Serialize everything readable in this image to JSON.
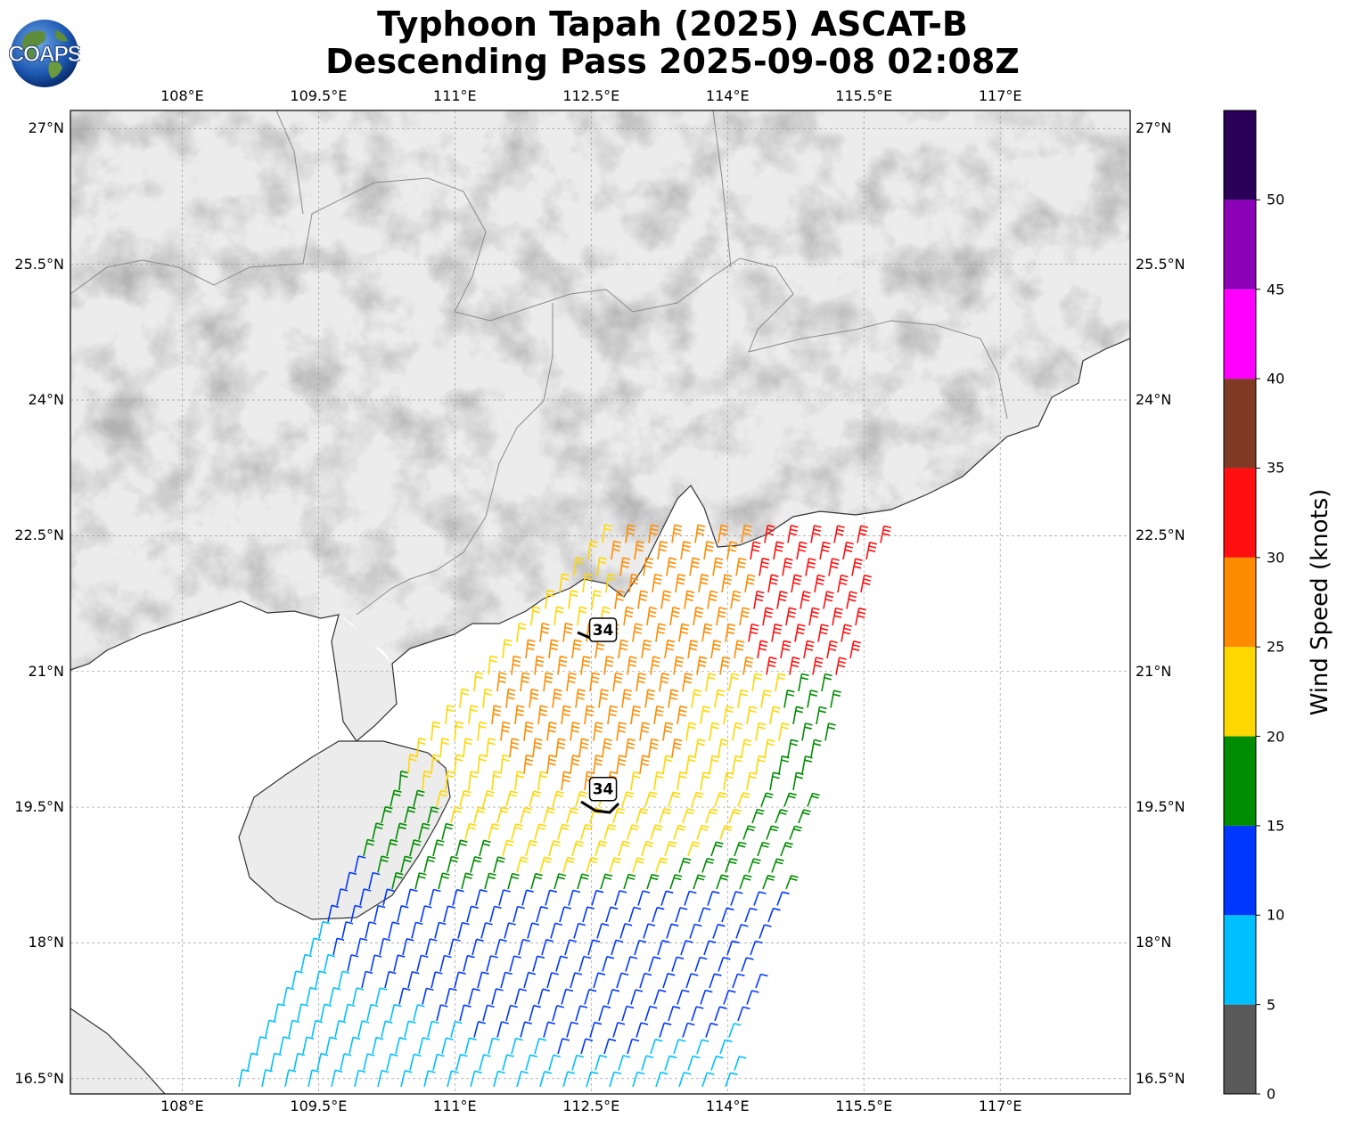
{
  "title": {
    "line1": "Typhoon Tapah (2025) ASCAT-B",
    "line2": "Descending Pass 2025-09-08 02:08Z"
  },
  "logo": {
    "text": "COAPS",
    "icon": "globe-logo-icon"
  },
  "map": {
    "lon_range": [
      106.77,
      118.43
    ],
    "lat_range": [
      16.33,
      27.2
    ],
    "lon_ticks": [
      "108°E",
      "109.5°E",
      "111°E",
      "112.5°E",
      "114°E",
      "115.5°E",
      "117°E"
    ],
    "lat_ticks": [
      "27°N",
      "25.5°N",
      "24°N",
      "22.5°N",
      "21°N",
      "19.5°N",
      "18°N",
      "16.5°N"
    ],
    "lon_tick_values": [
      108,
      109.5,
      111,
      112.5,
      114,
      115.5,
      117
    ],
    "lat_tick_values": [
      27,
      25.5,
      24,
      22.5,
      21,
      19.5,
      18,
      16.5
    ],
    "grid": "dashed",
    "land_color": "#ebebeb",
    "ocean_color": "#ffffff"
  },
  "contours": [
    {
      "label": "34",
      "lon": 112.63,
      "lat": 21.46
    },
    {
      "label": "34",
      "lon": 112.63,
      "lat": 19.7
    }
  ],
  "colorbar": {
    "label": "Wind Speed (knots)",
    "ticks": [
      "0",
      "5",
      "10",
      "15",
      "20",
      "25",
      "30",
      "35",
      "40",
      "45",
      "50"
    ],
    "tick_values": [
      0,
      5,
      10,
      15,
      20,
      25,
      30,
      35,
      40,
      45,
      50
    ],
    "max": 55,
    "colors": [
      "#595959",
      "#00bfff",
      "#0037ff",
      "#008c00",
      "#ffd700",
      "#ff8c00",
      "#ff0f0f",
      "#7f3a25",
      "#ff00ff",
      "#8c00b8",
      "#2a0058"
    ]
  }
}
